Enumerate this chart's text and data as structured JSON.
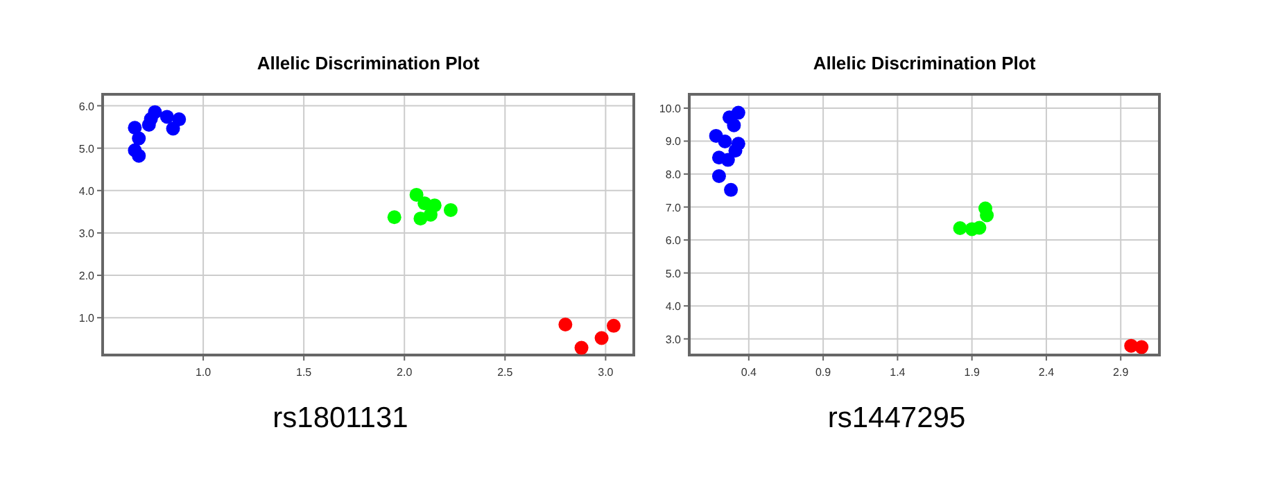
{
  "chart_data": [
    {
      "type": "scatter",
      "title": "Allelic Discrimination Plot",
      "xlabel": "rs1801131",
      "xlim": [
        0.5,
        3.14
      ],
      "ylim": [
        0.12,
        6.27
      ],
      "xticks": [
        {
          "value": 1,
          "label": "1.0"
        },
        {
          "value": 1.5,
          "label": "1.5"
        },
        {
          "value": 2,
          "label": "2.0"
        },
        {
          "value": 2.5,
          "label": "2.5"
        },
        {
          "value": 3,
          "label": "3.0"
        }
      ],
      "yticks": [
        {
          "value": 1,
          "label": "1.0"
        },
        {
          "value": 2,
          "label": "2.0"
        },
        {
          "value": 3,
          "label": "3.0"
        },
        {
          "value": 4,
          "label": "4.0"
        },
        {
          "value": 5,
          "label": "5.0"
        },
        {
          "value": 6,
          "label": "6.0"
        }
      ],
      "grid": true,
      "marker": "circle",
      "series": [
        {
          "color": "#0000ff",
          "x": [
            0.66,
            0.68,
            0.66,
            0.68,
            0.73,
            0.74,
            0.76,
            0.82,
            0.85,
            0.88
          ],
          "values": [
            5.48,
            5.23,
            4.95,
            4.82,
            5.55,
            5.69,
            5.85,
            5.74,
            5.46,
            5.68
          ]
        },
        {
          "color": "#00ff00",
          "x": [
            1.95,
            2.06,
            2.08,
            2.1,
            2.13,
            2.15,
            2.23
          ],
          "values": [
            3.37,
            3.9,
            3.34,
            3.7,
            3.43,
            3.65,
            3.54
          ]
        },
        {
          "color": "#ff0000",
          "x": [
            2.8,
            2.88,
            2.98,
            3.04
          ],
          "values": [
            0.84,
            0.29,
            0.52,
            0.81
          ]
        }
      ]
    },
    {
      "type": "scatter",
      "title": "Allelic Discrimination Plot",
      "xlabel": "rs1447295",
      "xlim": [
        0,
        3.16
      ],
      "ylim": [
        2.51,
        10.42
      ],
      "xticks": [
        0.4,
        0.9,
        1.4,
        1.9,
        2.4,
        2.9
      ],
      "yticks": [
        {
          "value": 3,
          "label": "3.0"
        },
        {
          "value": 4,
          "label": "4.0"
        },
        {
          "value": 5,
          "label": "5.0"
        },
        {
          "value": 6,
          "label": "6.0"
        },
        {
          "value": 7,
          "label": "7.0"
        },
        {
          "value": 8,
          "label": "8.0"
        },
        {
          "value": 9,
          "label": "9.0"
        },
        {
          "value": 10,
          "label": "10.0"
        }
      ],
      "grid": true,
      "marker": "circle",
      "series": [
        {
          "color": "#0000ff",
          "x": [
            0.18,
            0.2,
            0.2,
            0.28,
            0.26,
            0.27,
            0.33,
            0.3,
            0.33,
            0.31,
            0.24
          ],
          "values": [
            9.16,
            8.5,
            7.94,
            7.52,
            8.43,
            9.72,
            9.86,
            9.48,
            8.92,
            8.71,
            8.99
          ]
        },
        {
          "color": "#00ff00",
          "x": [
            1.82,
            1.9,
            1.95,
            1.99,
            2.0
          ],
          "values": [
            6.36,
            6.33,
            6.37,
            6.96,
            6.75
          ]
        },
        {
          "color": "#ff0000",
          "x": [
            2.97,
            3.04
          ],
          "values": [
            2.79,
            2.75
          ]
        }
      ]
    }
  ]
}
